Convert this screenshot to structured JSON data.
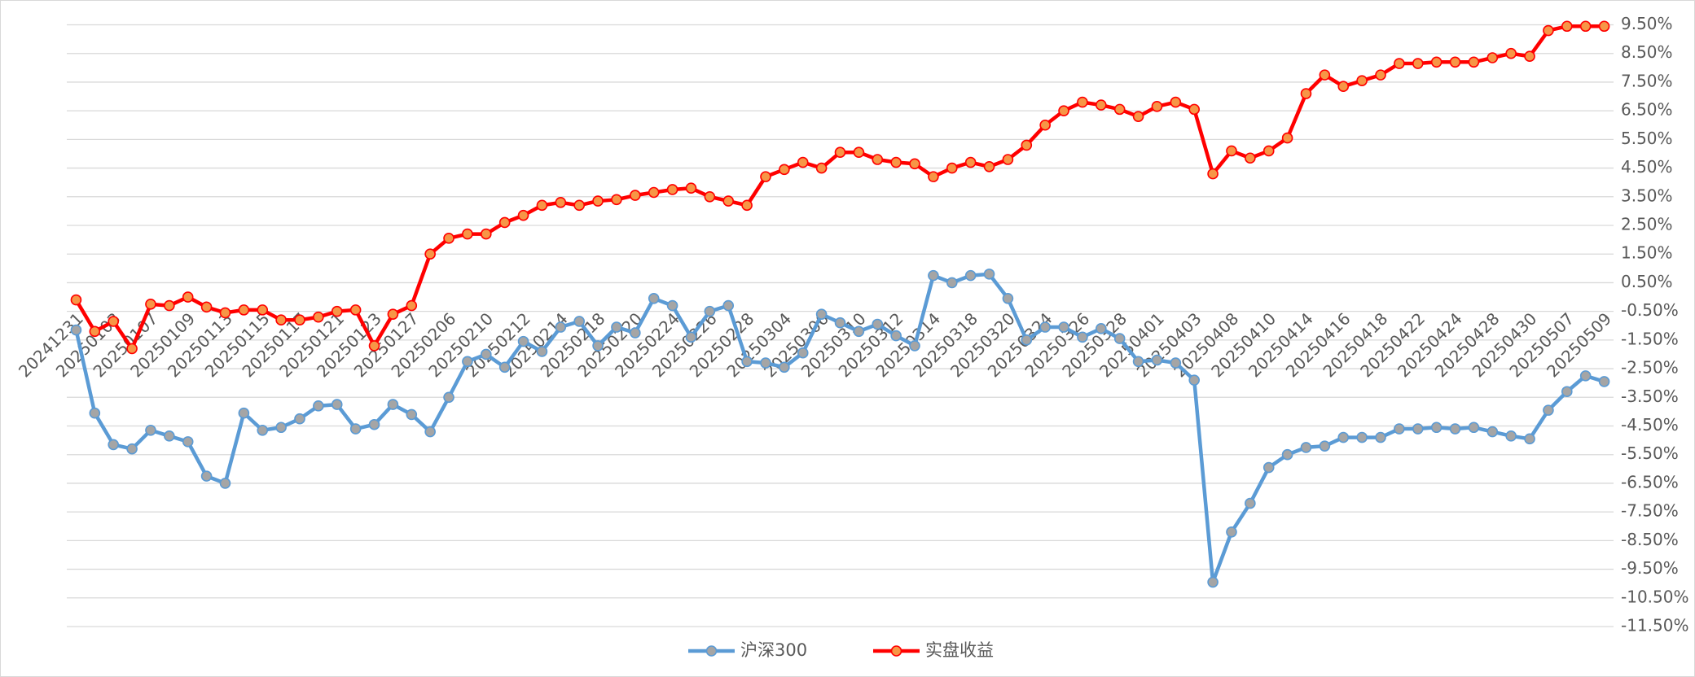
{
  "chart_data": {
    "type": "line",
    "categories": [
      "20241231",
      null,
      "20250103",
      null,
      "20250107",
      null,
      "20250109",
      null,
      "20250113",
      null,
      "20250115",
      null,
      "20250117",
      null,
      "20250121",
      null,
      "20250123",
      null,
      "20250127",
      null,
      "20250206",
      null,
      "20250210",
      null,
      "20250212",
      null,
      "20250214",
      null,
      "20250218",
      null,
      "20250220",
      null,
      "20250224",
      null,
      "20250226",
      null,
      "20250228",
      null,
      "20250304",
      null,
      "20250306",
      null,
      "20250310",
      null,
      "20250312",
      null,
      "20250314",
      null,
      "20250318",
      null,
      "20250320",
      null,
      "20250324",
      null,
      "20250326",
      null,
      "20250328",
      null,
      "20250401",
      null,
      "20250403",
      null,
      "20250408",
      null,
      "20250410",
      null,
      "20250414",
      null,
      "20250416",
      null,
      "20250418",
      null,
      "20250422",
      null,
      "20250424",
      null,
      "20250428",
      null,
      "20250430",
      null,
      "20250507",
      null,
      "20250509"
    ],
    "series": [
      {
        "name": "沪深300",
        "color": "#5b9bd5",
        "marker_color": "#a5a5a5",
        "values": [
          -1.15,
          -4.05,
          -5.15,
          -5.3,
          -4.65,
          -4.85,
          -5.05,
          -6.25,
          -6.5,
          -4.05,
          -4.65,
          -4.55,
          -4.25,
          -3.8,
          -3.75,
          -4.6,
          -4.45,
          -3.75,
          -4.1,
          -4.7,
          -3.5,
          -2.25,
          -2.0,
          -2.45,
          -1.55,
          -1.9,
          -1.05,
          -0.85,
          -1.7,
          -1.05,
          -1.25,
          -0.05,
          -0.3,
          -1.4,
          -0.5,
          -0.3,
          -2.25,
          -2.3,
          -2.45,
          -1.95,
          -0.6,
          -0.9,
          -1.2,
          -0.95,
          -1.35,
          -1.7,
          0.75,
          0.5,
          0.75,
          0.8,
          -0.05,
          -1.5,
          -1.05,
          -1.05,
          -1.4,
          -1.1,
          -1.45,
          -2.25,
          -2.2,
          -2.3,
          -2.9,
          -9.95,
          -8.2,
          -7.2,
          -5.95,
          -5.5,
          -5.25,
          -5.2,
          -4.9,
          -4.9,
          -4.9,
          -4.6,
          -4.6,
          -4.55,
          -4.6,
          -4.55,
          -4.7,
          -4.85,
          -4.95,
          -3.95,
          -3.3,
          -2.75,
          -2.95
        ]
      },
      {
        "name": "实盘收益",
        "color": "#ff0000",
        "marker_color": "#f79646",
        "values": [
          -0.1,
          -1.2,
          -0.85,
          -1.8,
          -0.25,
          -0.3,
          0.0,
          -0.35,
          -0.55,
          -0.45,
          -0.45,
          -0.8,
          -0.8,
          -0.7,
          -0.5,
          -0.45,
          -1.7,
          -0.6,
          -0.3,
          1.5,
          2.05,
          2.2,
          2.2,
          2.6,
          2.85,
          3.2,
          3.3,
          3.2,
          3.35,
          3.4,
          3.55,
          3.65,
          3.75,
          3.8,
          3.5,
          3.35,
          3.2,
          4.2,
          4.45,
          4.7,
          4.5,
          5.05,
          5.05,
          4.8,
          4.7,
          4.65,
          4.2,
          4.5,
          4.7,
          4.55,
          4.8,
          5.3,
          6.0,
          6.5,
          6.8,
          6.7,
          6.55,
          6.3,
          6.65,
          6.8,
          6.55,
          4.3,
          5.1,
          4.85,
          5.1,
          5.55,
          7.1,
          7.75,
          7.35,
          7.55,
          7.75,
          8.15,
          8.15,
          8.2,
          8.2,
          8.2,
          8.35,
          8.5,
          8.4,
          9.3,
          9.45,
          9.45,
          9.45
        ]
      }
    ],
    "ylim": [
      -11.5,
      9.5
    ],
    "yticks": [
      {
        "value": 9.5,
        "label": "9.50%"
      },
      {
        "value": 8.5,
        "label": "8.50%"
      },
      {
        "value": 7.5,
        "label": "7.50%"
      },
      {
        "value": 6.5,
        "label": "6.50%"
      },
      {
        "value": 5.5,
        "label": "5.50%"
      },
      {
        "value": 4.5,
        "label": "4.50%"
      },
      {
        "value": 3.5,
        "label": "3.50%"
      },
      {
        "value": 2.5,
        "label": "2.50%"
      },
      {
        "value": 1.5,
        "label": "1.50%"
      },
      {
        "value": 0.5,
        "label": "0.50%"
      },
      {
        "value": -0.5,
        "label": "-0.50%"
      },
      {
        "value": -1.5,
        "label": "-1.50%"
      },
      {
        "value": -2.5,
        "label": "-2.50%"
      },
      {
        "value": -3.5,
        "label": "-3.50%"
      },
      {
        "value": -4.5,
        "label": "-4.50%"
      },
      {
        "value": -5.5,
        "label": "-5.50%"
      },
      {
        "value": -6.5,
        "label": "-6.50%"
      },
      {
        "value": -7.5,
        "label": "-7.50%"
      },
      {
        "value": -8.5,
        "label": "-8.50%"
      },
      {
        "value": -9.5,
        "label": "-9.50%"
      },
      {
        "value": -10.5,
        "label": "-10.50%"
      },
      {
        "value": -11.5,
        "label": "-11.50%"
      }
    ],
    "grid": true,
    "legend": "bottom"
  }
}
